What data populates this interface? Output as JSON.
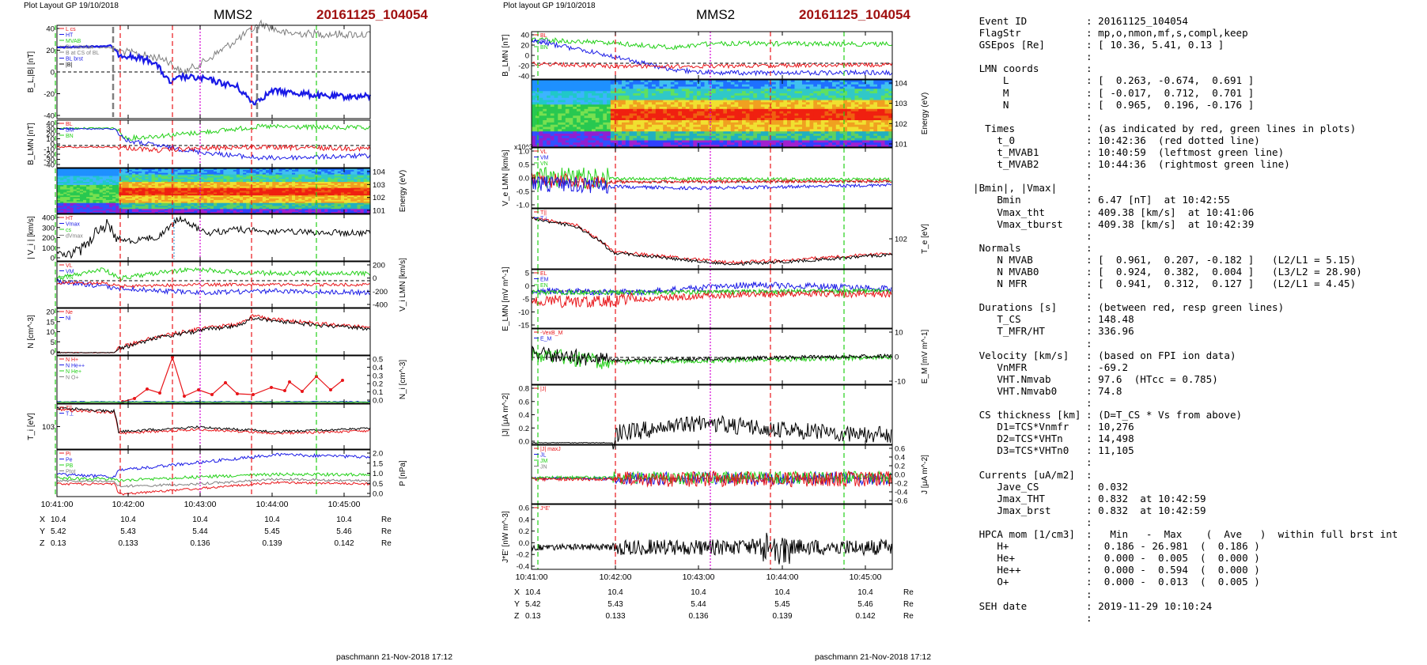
{
  "figure": {
    "colors": {
      "black": "#000000",
      "red": "#e8161a",
      "green": "#23d018",
      "blue": "#1a1ae6",
      "gray": "#7f7f7f",
      "magenta": "#d400d4",
      "title_red": "#a01010"
    }
  },
  "panels_left": {
    "header": {
      "plot_layout": "Plot Layout GP 19/10/2018",
      "spacecraft": "MMS2",
      "event": "20161125_104054"
    },
    "footer": "paschmann 21-Nov-2018 17:12",
    "time_ticks": [
      "10:41:00",
      "10:42:00",
      "10:43:00",
      "10:44:00",
      "10:45:00"
    ],
    "ephemeris": {
      "rows": [
        {
          "label": "X",
          "values": [
            "10.4",
            "10.4",
            "10.4",
            "10.4",
            "10.4"
          ],
          "unit": "Re"
        },
        {
          "label": "Y",
          "values": [
            "5.42",
            "5.43",
            "5.44",
            "5.45",
            "5.46"
          ],
          "unit": "Re"
        },
        {
          "label": "Z",
          "values": [
            "0.13",
            "0.133",
            "0.136",
            "0.139",
            "0.142"
          ],
          "unit": "Re"
        }
      ]
    },
    "panels": [
      {
        "ylabel": "B_L,|B| [nT]",
        "yticks": [
          "40",
          "20",
          "0",
          "-20",
          "-40"
        ],
        "legend": [
          "L cs",
          "HT",
          "MVAB",
          "BL minmax",
          "B at CS of BL",
          "BL brst",
          "|B|"
        ]
      },
      {
        "ylabel": "B_LMN [nT]",
        "yticks": [
          "40",
          "30",
          "20",
          "10",
          "0",
          "-10",
          "-20",
          "-30",
          "-40"
        ],
        "legend": [
          "BL",
          "BM",
          "BN"
        ]
      },
      {
        "ylabel": "Energy (eV)",
        "yticks_right": [
          "10^4",
          "10^3",
          "10^2",
          "10^1"
        ]
      },
      {
        "ylabel": "| V_i | [km/s]",
        "yticks": [
          "400",
          "300",
          "200",
          "100",
          "0"
        ],
        "legend": [
          "HT",
          "Vmax",
          "cs",
          "dVmax"
        ]
      },
      {
        "ylabel": "V_i LMN [km/s]",
        "yticks_right": [
          "200",
          "0",
          "-200",
          "-400"
        ],
        "legend": [
          "VL",
          "VM",
          "VN"
        ]
      },
      {
        "ylabel": "N [cm^-3]",
        "yticks": [
          "20",
          "15",
          "10",
          "5",
          "0"
        ],
        "legend": [
          "Ne",
          "Ni"
        ]
      },
      {
        "ylabel": "N_i [cm^-3]",
        "yticks_right": [
          "0.5",
          "0.4",
          "0.3",
          "0.2",
          "0.1",
          "0.0"
        ],
        "legend": [
          "N H+",
          "N He++",
          "N He+",
          "N O+"
        ]
      },
      {
        "ylabel": "T_i [eV]",
        "yticks": [
          "10^3"
        ],
        "legend": [
          "T||",
          "T⊥"
        ]
      },
      {
        "ylabel": "P [nPa]",
        "yticks_right": [
          "2.0",
          "1.5",
          "1.0",
          "0.5",
          "0.0"
        ],
        "legend": [
          "Pi",
          "Pe",
          "PB",
          "Ptot"
        ]
      }
    ]
  },
  "panels_right": {
    "header": {
      "plot_layout": "Plot layout GP 19/10/2018",
      "spacecraft": "MMS2",
      "event": "20161125_104054"
    },
    "footer": "paschmann 21-Nov-2018 17:12",
    "time_ticks": [
      "10:41:00",
      "10:42:00",
      "10:43:00",
      "10:44:00",
      "10:45:00"
    ],
    "ephemeris": {
      "rows": [
        {
          "label": "X",
          "values": [
            "10.4",
            "10.4",
            "10.4",
            "10.4",
            "10.4"
          ],
          "unit": "Re"
        },
        {
          "label": "Y",
          "values": [
            "5.42",
            "5.43",
            "5.44",
            "5.45",
            "5.46"
          ],
          "unit": "Re"
        },
        {
          "label": "Z",
          "values": [
            "0.13",
            "0.133",
            "0.136",
            "0.139",
            "0.142"
          ],
          "unit": "Re"
        }
      ]
    },
    "panels": [
      {
        "ylabel": "B_LMN [nT]",
        "yticks": [
          "40",
          "20",
          "0",
          "-20",
          "-40"
        ],
        "legend": [
          "BL",
          "BM",
          "BN"
        ]
      },
      {
        "ylabel": "Energy (eV)",
        "yticks_right": [
          "10^4",
          "10^3",
          "10^2",
          "10^1"
        ]
      },
      {
        "ylabel": "V_e LMN [km/s]",
        "yticks": [
          "1.0",
          "0.5",
          "0.0",
          "-0.5",
          "-1.0"
        ],
        "mult": "x10^3",
        "legend": [
          "VL",
          "VM",
          "VN"
        ]
      },
      {
        "ylabel": "T_e [eV]",
        "yticks_right": [
          "10^2"
        ],
        "legend": [
          "T||",
          "T⊥"
        ]
      },
      {
        "ylabel": "E_LMN [mV m^-1]",
        "yticks": [
          "5",
          "0",
          "-5",
          "-10",
          "-15"
        ],
        "legend": [
          "EL",
          "EM",
          "EN"
        ]
      },
      {
        "ylabel": "E_M [mV m^-1]",
        "yticks_right": [
          "10",
          "0",
          "-10"
        ],
        "legend": [
          "-VexB_M",
          "E_M"
        ]
      },
      {
        "ylabel": "|J| [μA m^-2]",
        "yticks": [
          "0.8",
          "0.6",
          "0.4",
          "0.2",
          "0.0"
        ],
        "legend": [
          "|J|"
        ]
      },
      {
        "ylabel": "J [μA m^-2]",
        "yticks_right": [
          "0.6",
          "0.4",
          "0.2",
          "0.0",
          "-0.2",
          "-0.4",
          "-0.6"
        ],
        "legend": [
          "|J| maxJ",
          "JL",
          "JM",
          "JN"
        ]
      },
      {
        "ylabel": "J*E' [nW m^-3]",
        "yticks": [
          "0.6",
          "0.4",
          "0.2",
          "0.0",
          "-0.2",
          "-0.4"
        ],
        "legend": [
          "J*E'"
        ]
      }
    ]
  },
  "summary": [
    {
      "label": " Event ID",
      "value": ": 20161125_104054"
    },
    {
      "label": " FlagStr",
      "value": ": mp,o,nmon,mf,s,compl,keep"
    },
    {
      "label": " GSEpos [Re]",
      "value": ": [ 10.36, 5.41, 0.13 ]"
    },
    {
      "label": "",
      "value": ":"
    },
    {
      "label": " LMN coords",
      "value": ":"
    },
    {
      "label": "     L",
      "value": ": [  0.263, -0.674,  0.691 ]"
    },
    {
      "label": "     M",
      "value": ": [ -0.017,  0.712,  0.701 ]"
    },
    {
      "label": "     N",
      "value": ": [  0.965,  0.196, -0.176 ]"
    },
    {
      "label": "",
      "value": ":"
    },
    {
      "label": "  Times",
      "value": ": (as indicated by red, green lines in plots)"
    },
    {
      "label": "    t_0",
      "value": ": 10:42:36  (red dotted line)"
    },
    {
      "label": "    t_MVAB1",
      "value": ": 10:40:59  (leftmost green line)"
    },
    {
      "label": "    t_MVAB2",
      "value": ": 10:44:36  (rightmost green line)"
    },
    {
      "label": "",
      "value": ":"
    },
    {
      "label": "|Bmin|, |Vmax|",
      "value": ":"
    },
    {
      "label": "    Bmin",
      "value": ": 6.47 [nT]  at 10:42:55"
    },
    {
      "label": "    Vmax_tht",
      "value": ": 409.38 [km/s]  at 10:41:06"
    },
    {
      "label": "    Vmax_tburst",
      "value": ": 409.38 [km/s]  at 10:42:39"
    },
    {
      "label": "",
      "value": ":"
    },
    {
      "label": " Normals",
      "value": ":"
    },
    {
      "label": "    N MVAB",
      "value": ": [  0.961,  0.207, -0.182 ]   (L2/L1 = 5.15)"
    },
    {
      "label": "    N MVAB0",
      "value": ": [  0.924,  0.382,  0.004 ]   (L3/L2 = 28.90)"
    },
    {
      "label": "    N MFR",
      "value": ": [  0.941,  0.312,  0.127 ]   (L2/L1 = 4.45)"
    },
    {
      "label": "",
      "value": ":"
    },
    {
      "label": " Durations [s]",
      "value": ": (between red, resp green lines)"
    },
    {
      "label": "    T_CS",
      "value": ": 148.48"
    },
    {
      "label": "    T_MFR/HT",
      "value": ": 336.96"
    },
    {
      "label": "",
      "value": ":"
    },
    {
      "label": " Velocity [km/s]",
      "value": ": (based on FPI ion data)"
    },
    {
      "label": "    VnMFR",
      "value": ": -69.2"
    },
    {
      "label": "    VHT.Nmvab",
      "value": ": 97.6  (HTcc = 0.785)"
    },
    {
      "label": "    VHT.Nmvab0",
      "value": ": 74.8"
    },
    {
      "label": "",
      "value": ":"
    },
    {
      "label": " CS thickness [km]",
      "value": ": (D=T_CS * Vs from above)"
    },
    {
      "label": "    D1=TCS*Vnmfr",
      "value": ": 10,276"
    },
    {
      "label": "    D2=TCS*VHTn",
      "value": ": 14,498"
    },
    {
      "label": "    D3=TCS*VHTn0",
      "value": ": 11,105"
    },
    {
      "label": "",
      "value": ":"
    },
    {
      "label": " Currents [uA/m2]",
      "value": ":"
    },
    {
      "label": "    Jave_CS",
      "value": ": 0.032"
    },
    {
      "label": "    Jmax_THT",
      "value": ": 0.832  at 10:42:59"
    },
    {
      "label": "    Jmax_brst",
      "value": ": 0.832  at 10:42:59"
    },
    {
      "label": "",
      "value": ":"
    },
    {
      "label": " HPCA mom [1/cm3]",
      "value": ":   Min   -  Max    (  Ave   )  within full brst int"
    },
    {
      "label": "    H+",
      "value": ":  0.186 - 26.981  (  0.186 )"
    },
    {
      "label": "    He+",
      "value": ":  0.000 -  0.005  (  0.000 )"
    },
    {
      "label": "    He++",
      "value": ":  0.000 -  0.594  (  0.000 )"
    },
    {
      "label": "    O+",
      "value": ":  0.000 -  0.013  (  0.005 )"
    },
    {
      "label": "",
      "value": ":"
    },
    {
      "label": " SEH date",
      "value": ": 2019-11-29 10:10:24"
    },
    {
      "label": "",
      "value": ":"
    }
  ],
  "chart_data": [
    {
      "type": "line",
      "title": "MMS2 20161125_104054",
      "xlabel": "",
      "x_ticks": [
        "10:41:00",
        "10:42:00",
        "10:43:00",
        "10:44:00",
        "10:45:00"
      ],
      "series": [
        {
          "name": "BL brst",
          "x": [
            "10:40:50",
            "10:41:10",
            "10:41:30",
            "10:41:50",
            "10:42:10",
            "10:42:30",
            "10:42:50",
            "10:43:10",
            "10:43:30",
            "10:43:50",
            "10:44:10",
            "10:44:30",
            "10:44:50",
            "10:45:10"
          ],
          "values": [
            24,
            25,
            26,
            27,
            14,
            -5,
            -15,
            -10,
            -12,
            -18,
            -16,
            -20,
            -22,
            -23
          ]
        },
        {
          "name": "|B|",
          "x": [
            "10:40:50",
            "10:41:30",
            "10:41:50",
            "10:42:10",
            "10:42:40",
            "10:43:00",
            "10:43:30",
            "10:44:00",
            "10:44:30",
            "10:45:10"
          ],
          "values": [
            26,
            28,
            28,
            28,
            18,
            30,
            32,
            38,
            36,
            38
          ]
        },
        {
          "name": "Ni",
          "x": [
            "10:40:50",
            "10:41:20",
            "10:41:50",
            "10:42:00",
            "10:42:30",
            "10:43:00",
            "10:43:30",
            "10:43:50",
            "10:44:20",
            "10:45:10"
          ],
          "values": [
            0.5,
            0.5,
            0.5,
            3,
            8,
            11,
            13,
            17,
            14,
            12
          ]
        },
        {
          "name": "N He++",
          "x": [
            "10:42:00",
            "10:42:10",
            "10:42:20",
            "10:42:30",
            "10:42:40",
            "10:42:50",
            "10:43:00",
            "10:43:10",
            "10:43:20",
            "10:43:30",
            "10:43:40",
            "10:43:50",
            "10:44:00",
            "10:44:10",
            "10:44:20",
            "10:44:30",
            "10:44:40",
            "10:44:50",
            "10:45:00"
          ],
          "values": [
            0.01,
            0.05,
            0.15,
            0.1,
            0.5,
            0.12,
            0.3,
            0.08,
            0.28,
            0.1,
            0.25,
            0.07,
            0.06,
            0.18,
            0.2,
            0.3,
            0.1,
            0.3,
            0.25
          ]
        }
      ]
    }
  ]
}
